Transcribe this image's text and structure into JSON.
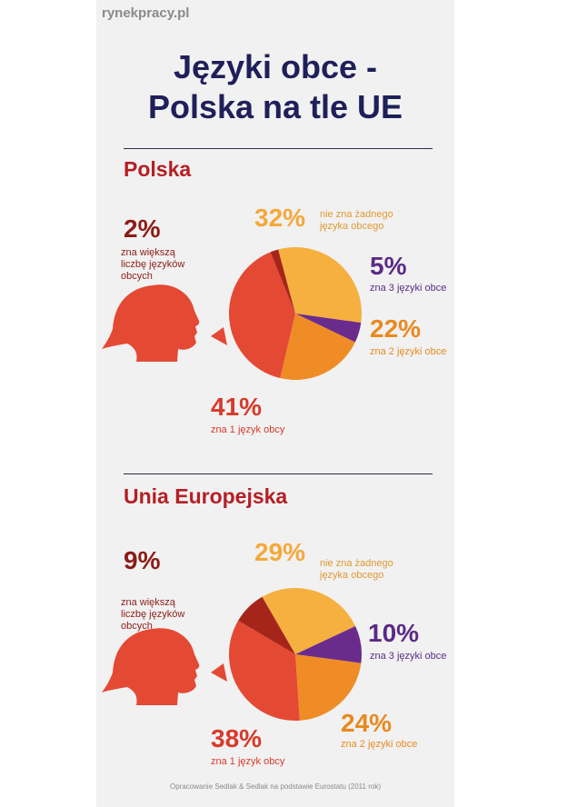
{
  "brand": "rynekpracy.pl",
  "title": {
    "line1": "Języki obce -",
    "line2": "Polska na tle UE"
  },
  "source": "Opracowanie Sedlak & Sedlak na podstawie Eurostatu (2011 rok)",
  "colors": {
    "none": "#f5b040",
    "three": "#6a2c8c",
    "two": "#ef8c25",
    "one": "#e44934",
    "more": "#a6251b",
    "head": "#e44934"
  },
  "icons": [
    "woman-head-icon"
  ],
  "chart_data": [
    {
      "type": "pie",
      "title": "Polska",
      "categories": [
        "nie zna żadnego języka obcego",
        "zna 3 języki obce",
        "zna 2 języki obce",
        "zna 1 język obcy",
        "zna większą liczbę języków obcych"
      ],
      "values": [
        32,
        5,
        22,
        41,
        2
      ],
      "labels": [
        "32%",
        "5%",
        "22%",
        "41%",
        "2%"
      ]
    },
    {
      "type": "pie",
      "title": "Unia Europejska",
      "categories": [
        "nie zna żadnego języka obcego",
        "zna 3 języki obce",
        "zna 2 języki obce",
        "zna 1 język obcy",
        "zna większą liczbę języków obcych"
      ],
      "values": [
        29,
        10,
        24,
        38,
        9
      ],
      "labels": [
        "29%",
        "10%",
        "24%",
        "38%",
        "9%"
      ]
    }
  ],
  "pl": {
    "section": "Polska",
    "none_pct": "32%",
    "none_l1": "nie zna żadnego",
    "none_l2": "języka obcego",
    "three_pct": "5%",
    "three_l": "zna 3 języki obce",
    "two_pct": "22%",
    "two_l": "zna 2 języki obce",
    "one_pct": "41%",
    "one_l": "zna 1 język obcy",
    "more_pct": "2%",
    "more_l1": "zna większą",
    "more_l2": "liczbę języków",
    "more_l3": "obcych"
  },
  "ue": {
    "section": "Unia Europejska",
    "none_pct": "29%",
    "none_l1": "nie zna żadnego",
    "none_l2": "języka obcego",
    "three_pct": "10%",
    "three_l": "zna 3 języki obce",
    "two_pct": "24%",
    "two_l": "zna 2 języki obce",
    "one_pct": "38%",
    "one_l": "zna 1 język obcy",
    "more_pct": "9%",
    "more_l1": "zna większą",
    "more_l2": "liczbę języków",
    "more_l3": "obcych"
  }
}
